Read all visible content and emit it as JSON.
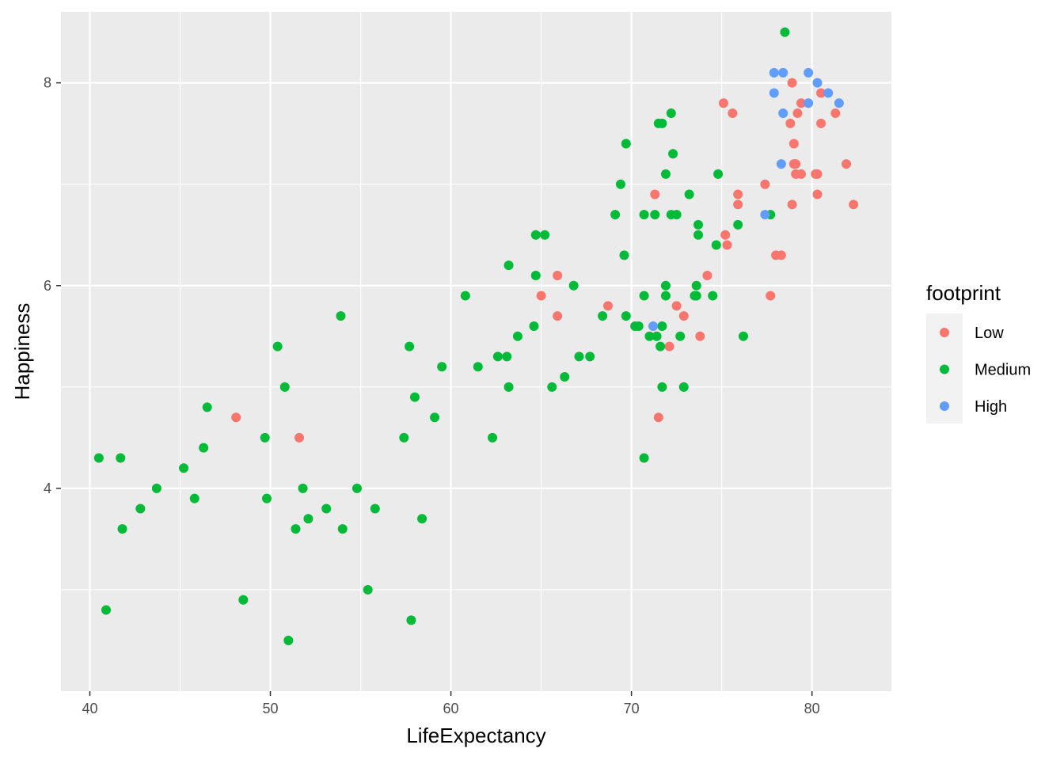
{
  "chart_data": {
    "type": "scatter",
    "xlabel": "LifeExpectancy",
    "ylabel": "Happiness",
    "xlim": [
      38.4,
      84.4
    ],
    "ylim": [
      2.0,
      8.7
    ],
    "x_ticks": [
      40,
      50,
      60,
      70,
      80
    ],
    "y_ticks": [
      4,
      6,
      8
    ],
    "grid": true,
    "legend": {
      "title": "footprint",
      "position": "right",
      "entries": [
        {
          "label": "Low",
          "color": "#F8766D"
        },
        {
          "label": "Medium",
          "color": "#00BA38"
        },
        {
          "label": "High",
          "color": "#619CFF"
        }
      ]
    },
    "series": [
      {
        "name": "Low",
        "color": "#F8766D",
        "points": [
          [
            48.1,
            4.7
          ],
          [
            51.6,
            4.5
          ],
          [
            65.0,
            5.9
          ],
          [
            65.9,
            6.1
          ],
          [
            65.9,
            5.7
          ],
          [
            68.7,
            5.8
          ],
          [
            71.3,
            6.9
          ],
          [
            71.5,
            4.7
          ],
          [
            72.1,
            5.4
          ],
          [
            72.5,
            5.8
          ],
          [
            72.9,
            5.7
          ],
          [
            73.8,
            5.5
          ],
          [
            74.2,
            6.1
          ],
          [
            75.1,
            7.8
          ],
          [
            75.2,
            6.5
          ],
          [
            75.3,
            6.4
          ],
          [
            75.6,
            7.7
          ],
          [
            75.9,
            6.9
          ],
          [
            75.9,
            6.8
          ],
          [
            77.4,
            7.0
          ],
          [
            77.7,
            5.9
          ],
          [
            78.0,
            6.3
          ],
          [
            78.3,
            6.3
          ],
          [
            78.8,
            7.6
          ],
          [
            78.9,
            8.0
          ],
          [
            78.9,
            6.8
          ],
          [
            79.0,
            7.4
          ],
          [
            79.0,
            7.2
          ],
          [
            79.1,
            7.2
          ],
          [
            79.1,
            7.1
          ],
          [
            79.2,
            7.7
          ],
          [
            79.4,
            7.8
          ],
          [
            79.4,
            7.1
          ],
          [
            80.2,
            7.1
          ],
          [
            80.3,
            7.1
          ],
          [
            80.3,
            6.9
          ],
          [
            80.5,
            7.6
          ],
          [
            80.5,
            7.9
          ],
          [
            81.3,
            7.7
          ],
          [
            81.9,
            7.2
          ],
          [
            82.3,
            6.8
          ]
        ]
      },
      {
        "name": "Medium",
        "color": "#00BA38",
        "points": [
          [
            40.5,
            4.3
          ],
          [
            40.9,
            2.8
          ],
          [
            41.7,
            4.3
          ],
          [
            41.8,
            3.6
          ],
          [
            42.8,
            3.8
          ],
          [
            43.7,
            4.0
          ],
          [
            45.2,
            4.2
          ],
          [
            45.8,
            3.9
          ],
          [
            46.3,
            4.4
          ],
          [
            46.5,
            4.8
          ],
          [
            48.5,
            2.9
          ],
          [
            49.7,
            4.5
          ],
          [
            49.8,
            3.9
          ],
          [
            50.4,
            5.4
          ],
          [
            50.8,
            5.0
          ],
          [
            51.0,
            2.5
          ],
          [
            51.4,
            3.6
          ],
          [
            51.8,
            4.0
          ],
          [
            52.1,
            3.7
          ],
          [
            53.1,
            3.8
          ],
          [
            53.9,
            5.7
          ],
          [
            54.0,
            3.6
          ],
          [
            54.8,
            4.0
          ],
          [
            55.4,
            3.0
          ],
          [
            55.8,
            3.8
          ],
          [
            57.4,
            4.5
          ],
          [
            57.7,
            5.4
          ],
          [
            57.8,
            2.7
          ],
          [
            58.0,
            4.9
          ],
          [
            58.4,
            3.7
          ],
          [
            59.1,
            4.7
          ],
          [
            59.5,
            5.2
          ],
          [
            60.8,
            5.9
          ],
          [
            61.5,
            5.2
          ],
          [
            62.3,
            4.5
          ],
          [
            62.6,
            5.3
          ],
          [
            63.1,
            5.3
          ],
          [
            63.2,
            6.2
          ],
          [
            63.2,
            5.0
          ],
          [
            63.7,
            5.5
          ],
          [
            64.6,
            5.6
          ],
          [
            64.7,
            6.5
          ],
          [
            64.7,
            6.1
          ],
          [
            65.2,
            6.5
          ],
          [
            65.6,
            5.0
          ],
          [
            66.3,
            5.1
          ],
          [
            66.8,
            6.0
          ],
          [
            67.1,
            5.3
          ],
          [
            67.7,
            5.3
          ],
          [
            68.4,
            5.7
          ],
          [
            69.1,
            6.7
          ],
          [
            69.4,
            7.0
          ],
          [
            69.6,
            6.3
          ],
          [
            69.7,
            7.4
          ],
          [
            69.7,
            5.7
          ],
          [
            70.2,
            5.6
          ],
          [
            70.4,
            5.6
          ],
          [
            70.7,
            6.7
          ],
          [
            70.7,
            5.9
          ],
          [
            70.7,
            4.3
          ],
          [
            71.0,
            5.5
          ],
          [
            71.3,
            6.7
          ],
          [
            71.4,
            5.5
          ],
          [
            71.5,
            7.6
          ],
          [
            71.6,
            5.4
          ],
          [
            71.7,
            7.6
          ],
          [
            71.7,
            5.6
          ],
          [
            71.7,
            5.0
          ],
          [
            71.9,
            7.1
          ],
          [
            71.9,
            6.0
          ],
          [
            71.9,
            5.9
          ],
          [
            72.2,
            7.7
          ],
          [
            72.2,
            6.7
          ],
          [
            72.3,
            7.3
          ],
          [
            72.5,
            6.7
          ],
          [
            72.7,
            5.5
          ],
          [
            72.9,
            5.0
          ],
          [
            73.2,
            6.9
          ],
          [
            73.5,
            5.9
          ],
          [
            73.6,
            6.0
          ],
          [
            73.6,
            5.9
          ],
          [
            73.7,
            6.6
          ],
          [
            73.7,
            6.5
          ],
          [
            74.5,
            5.9
          ],
          [
            74.7,
            6.4
          ],
          [
            74.8,
            7.1
          ],
          [
            75.9,
            6.6
          ],
          [
            76.2,
            5.5
          ],
          [
            77.7,
            6.7
          ],
          [
            78.5,
            8.5
          ]
        ]
      },
      {
        "name": "High",
        "color": "#619CFF",
        "points": [
          [
            71.2,
            5.6
          ],
          [
            77.4,
            6.7
          ],
          [
            77.9,
            8.1
          ],
          [
            77.9,
            7.9
          ],
          [
            78.3,
            7.2
          ],
          [
            78.4,
            8.1
          ],
          [
            78.4,
            7.7
          ],
          [
            79.8,
            8.1
          ],
          [
            79.8,
            7.8
          ],
          [
            80.3,
            8.0
          ],
          [
            80.9,
            7.9
          ],
          [
            81.5,
            7.8
          ]
        ]
      }
    ]
  }
}
